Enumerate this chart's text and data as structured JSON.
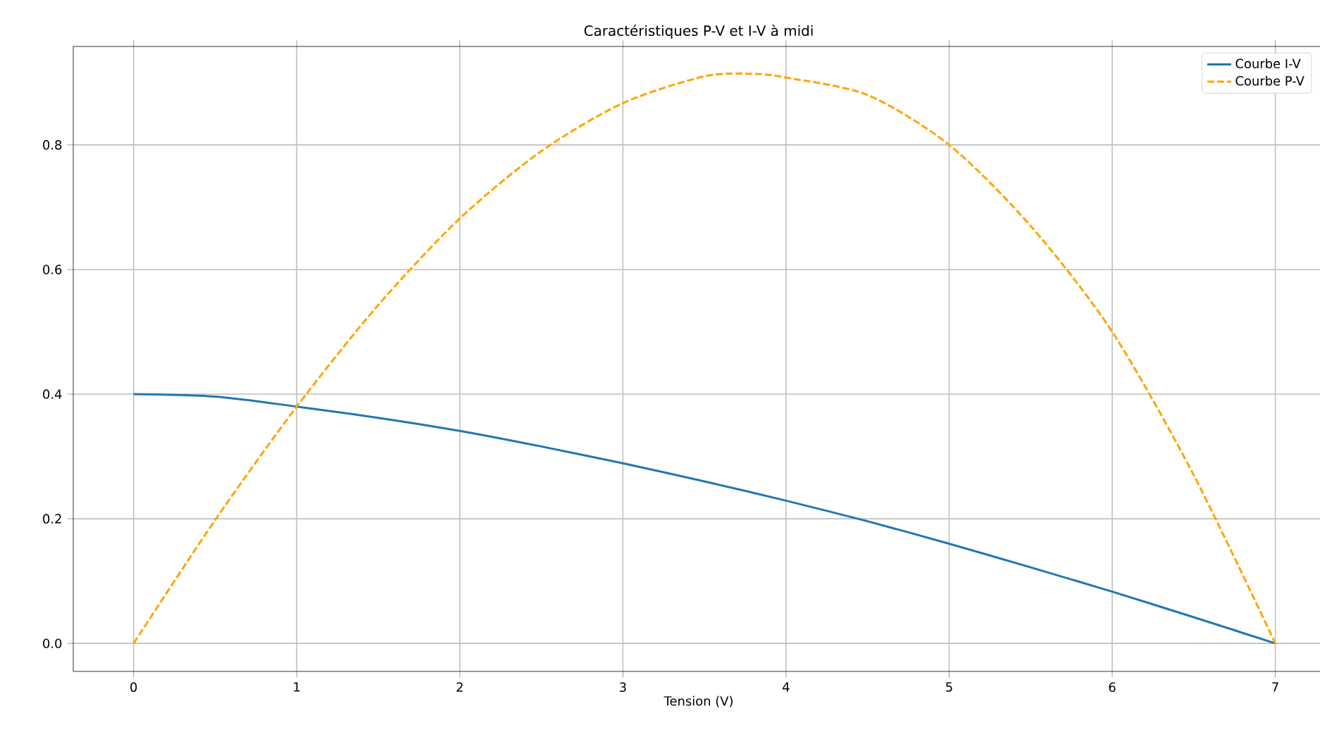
{
  "chart_data": {
    "type": "line",
    "title": "Caractéristiques P-V et I-V à midi",
    "xlabel": "Tension (V)",
    "xlim": [
      -0.37,
      7.3
    ],
    "ylim": [
      -0.045,
      0.958
    ],
    "xticks": [
      0,
      1,
      2,
      3,
      4,
      5,
      6,
      7
    ],
    "yticks": [
      {
        "value": 0,
        "label": "0.0"
      },
      {
        "value": 0.2,
        "label": "0.2"
      },
      {
        "value": 0.4,
        "label": "0.4"
      },
      {
        "value": 0.6,
        "label": "0.6"
      },
      {
        "value": 0.8,
        "label": "0.8"
      }
    ],
    "grid": true,
    "legend": "top right",
    "series": [
      {
        "name": "Courbe I-V",
        "color": "#1f77b4",
        "line_style": "solid",
        "x": [
          0,
          0.5,
          1,
          1.5,
          2,
          2.5,
          3,
          3.5,
          4,
          4.5,
          5,
          5.5,
          6,
          6.5,
          7
        ],
        "values": [
          0.4,
          0.396,
          0.38,
          0.362,
          0.341,
          0.316,
          0.289,
          0.26,
          0.229,
          0.196,
          0.16,
          0.122,
          0.083,
          0.042,
          0.0
        ]
      },
      {
        "name": "Courbe P-V",
        "color": "#ffa500",
        "line_style": "dashed",
        "x": [
          0,
          0.5,
          1,
          1.5,
          2,
          2.5,
          3,
          3.5,
          3.8,
          4,
          4.5,
          5,
          5.5,
          6,
          6.5,
          7
        ],
        "values": [
          0,
          0.198,
          0.38,
          0.543,
          0.682,
          0.79,
          0.867,
          0.91,
          0.914,
          0.908,
          0.88,
          0.8,
          0.67,
          0.5,
          0.27,
          0
        ]
      }
    ]
  }
}
